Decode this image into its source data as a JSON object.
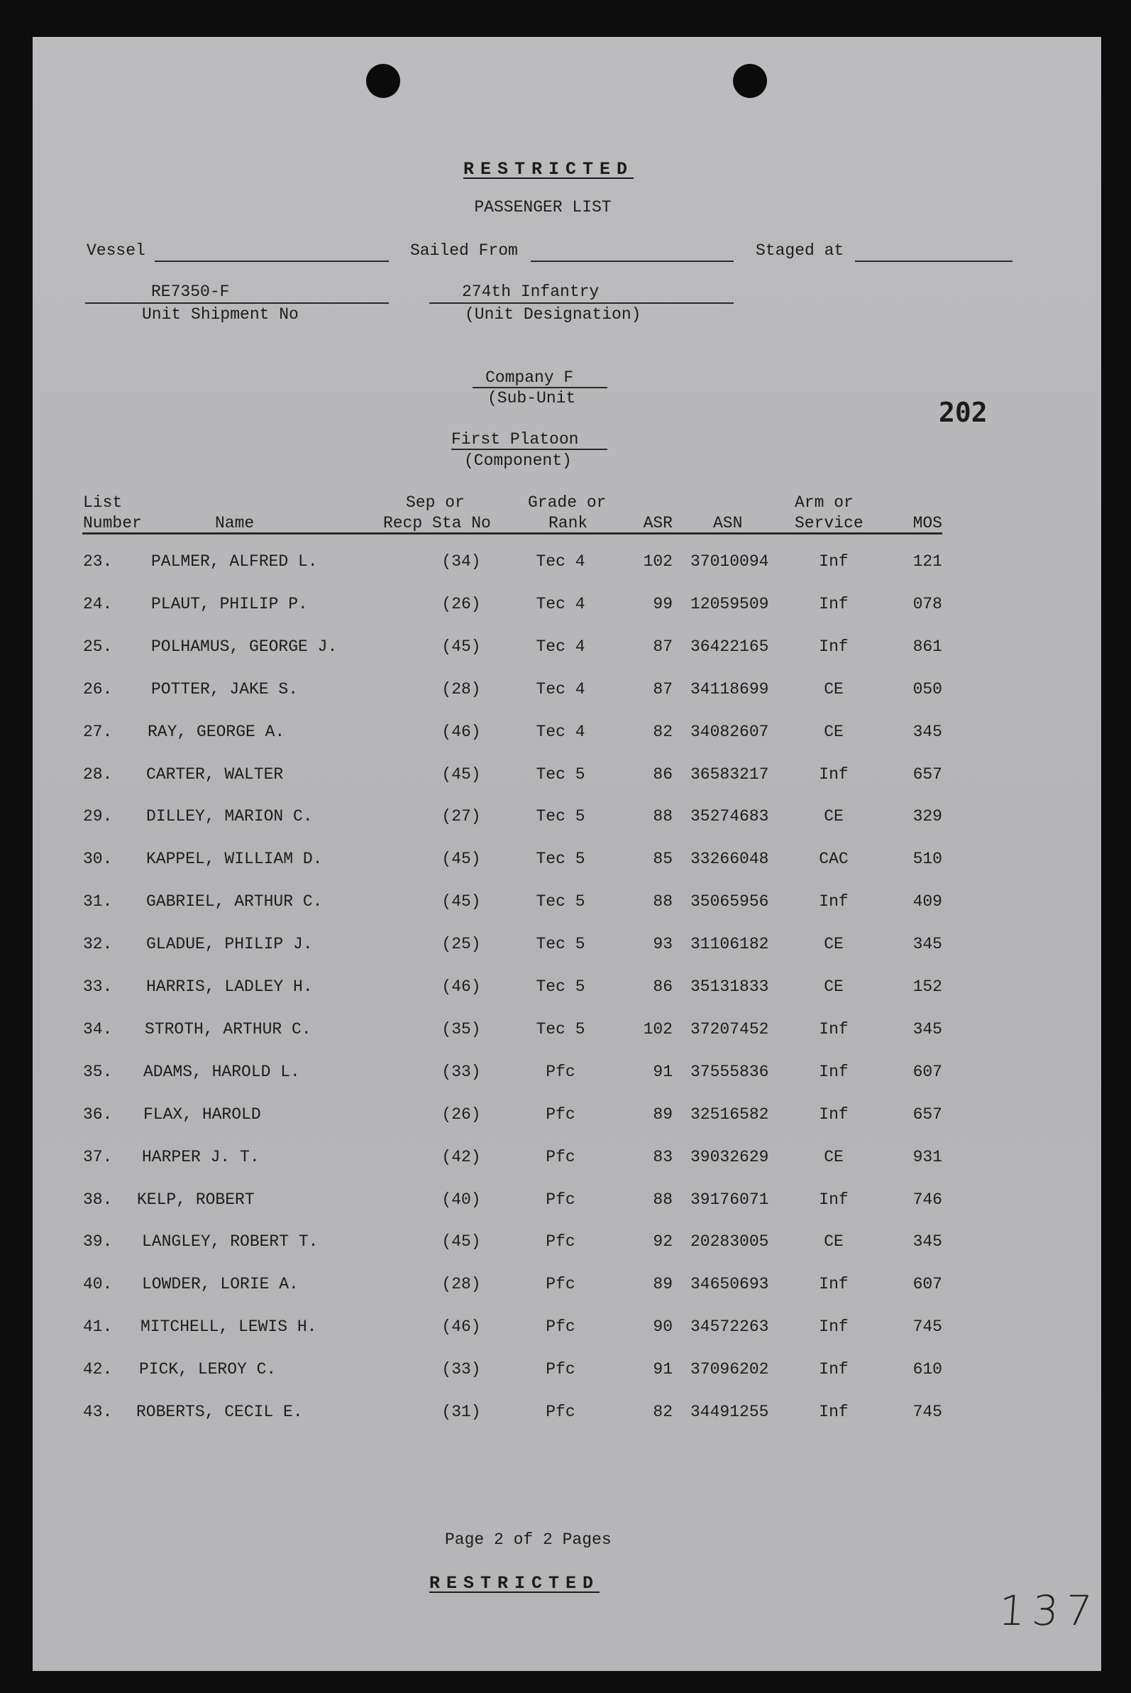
{
  "header": {
    "classification": "RESTRICTED",
    "title": "PASSENGER LIST",
    "vessel_label": "Vessel",
    "vessel_value": "",
    "sailed_from_label": "Sailed From",
    "sailed_from_value": "",
    "staged_at_label": "Staged at",
    "staged_at_value": "",
    "unit_shipment_no": "RE7350-F",
    "unit_shipment_label": "Unit Shipment No",
    "unit_designation": "274th Infantry",
    "unit_designation_label": "(Unit Designation)",
    "sub_unit": "Company F",
    "sub_unit_label": "(Sub-Unit",
    "component": "First Platoon",
    "component_label": "(Component)",
    "stamp_number": "202"
  },
  "table": {
    "columns": [
      {
        "line1": "List",
        "line2": "Number"
      },
      {
        "line1": "",
        "line2": "Name"
      },
      {
        "line1": "Sep or",
        "line2": "Recp Sta No"
      },
      {
        "line1": "Grade or",
        "line2": "Rank"
      },
      {
        "line1": "",
        "line2": "ASR"
      },
      {
        "line1": "",
        "line2": "ASN"
      },
      {
        "line1": "Arm or",
        "line2": "Service"
      },
      {
        "line1": "",
        "line2": "MOS"
      }
    ],
    "rows": [
      {
        "no": "23.",
        "name": "PALMER, ALFRED L.",
        "sep": "(34)",
        "grade": "Tec 4",
        "asr": "102",
        "asn": "37010094",
        "arm": "Inf",
        "mos": "121"
      },
      {
        "no": "24.",
        "name": "PLAUT, PHILIP P.",
        "sep": "(26)",
        "grade": "Tec 4",
        "asr": "99",
        "asn": "12059509",
        "arm": "Inf",
        "mos": "078"
      },
      {
        "no": "25.",
        "name": "POLHAMUS, GEORGE J.",
        "sep": "(45)",
        "grade": "Tec 4",
        "asr": "87",
        "asn": "36422165",
        "arm": "Inf",
        "mos": "861"
      },
      {
        "no": "26.",
        "name": "POTTER, JAKE S.",
        "sep": "(28)",
        "grade": "Tec 4",
        "asr": "87",
        "asn": "34118699",
        "arm": "CE",
        "mos": "050"
      },
      {
        "no": "27.",
        "name": "RAY, GEORGE A.",
        "sep": "(46)",
        "grade": "Tec 4",
        "asr": "82",
        "asn": "34082607",
        "arm": "CE",
        "mos": "345"
      },
      {
        "no": "28.",
        "name": "CARTER, WALTER",
        "sep": "(45)",
        "grade": "Tec 5",
        "asr": "86",
        "asn": "36583217",
        "arm": "Inf",
        "mos": "657"
      },
      {
        "no": "29.",
        "name": "DILLEY, MARION C.",
        "sep": "(27)",
        "grade": "Tec 5",
        "asr": "88",
        "asn": "35274683",
        "arm": "CE",
        "mos": "329"
      },
      {
        "no": "30.",
        "name": "KAPPEL, WILLIAM D.",
        "sep": "(45)",
        "grade": "Tec 5",
        "asr": "85",
        "asn": "33266048",
        "arm": "CAC",
        "mos": "510"
      },
      {
        "no": "31.",
        "name": "GABRIEL, ARTHUR C.",
        "sep": "(45)",
        "grade": "Tec 5",
        "asr": "88",
        "asn": "35065956",
        "arm": "Inf",
        "mos": "409"
      },
      {
        "no": "32.",
        "name": "GLADUE, PHILIP J.",
        "sep": "(25)",
        "grade": "Tec 5",
        "asr": "93",
        "asn": "31106182",
        "arm": "CE",
        "mos": "345"
      },
      {
        "no": "33.",
        "name": "HARRIS, LADLEY H.",
        "sep": "(46)",
        "grade": "Tec 5",
        "asr": "86",
        "asn": "35131833",
        "arm": "CE",
        "mos": "152"
      },
      {
        "no": "34.",
        "name": "STROTH, ARTHUR C.",
        "sep": "(35)",
        "grade": "Tec 5",
        "asr": "102",
        "asn": "37207452",
        "arm": "Inf",
        "mos": "345"
      },
      {
        "no": "35.",
        "name": "ADAMS, HAROLD L.",
        "sep": "(33)",
        "grade": "Pfc",
        "asr": "91",
        "asn": "37555836",
        "arm": "Inf",
        "mos": "607"
      },
      {
        "no": "36.",
        "name": "FLAX, HAROLD",
        "sep": "(26)",
        "grade": "Pfc",
        "asr": "89",
        "asn": "32516582",
        "arm": "Inf",
        "mos": "657"
      },
      {
        "no": "37.",
        "name": "HARPER J. T.",
        "sep": "(42)",
        "grade": "Pfc",
        "asr": "83",
        "asn": "39032629",
        "arm": "CE",
        "mos": "931"
      },
      {
        "no": "38.",
        "name": "KELP, ROBERT",
        "sep": "(40)",
        "grade": "Pfc",
        "asr": "88",
        "asn": "39176071",
        "arm": "Inf",
        "mos": "746"
      },
      {
        "no": "39.",
        "name": "LANGLEY, ROBERT T.",
        "sep": "(45)",
        "grade": "Pfc",
        "asr": "92",
        "asn": "20283005",
        "arm": "CE",
        "mos": "345"
      },
      {
        "no": "40.",
        "name": "LOWDER, LORIE A.",
        "sep": "(28)",
        "grade": "Pfc",
        "asr": "89",
        "asn": "34650693",
        "arm": "Inf",
        "mos": "607"
      },
      {
        "no": "41.",
        "name": "MITCHELL, LEWIS H.",
        "sep": "(46)",
        "grade": "Pfc",
        "asr": "90",
        "asn": "34572263",
        "arm": "Inf",
        "mos": "745"
      },
      {
        "no": "42.",
        "name": "PICK, LEROY C.",
        "sep": "(33)",
        "grade": "Pfc",
        "asr": "91",
        "asn": "37096202",
        "arm": "Inf",
        "mos": "610"
      },
      {
        "no": "43.",
        "name": "ROBERTS, CECIL E.",
        "sep": "(31)",
        "grade": "Pfc",
        "asr": "82",
        "asn": "34491255",
        "arm": "Inf",
        "mos": "745"
      }
    ]
  },
  "footer": {
    "page_info": "Page 2 of 2 Pages",
    "classification": "RESTRICTED",
    "handwritten_number": "137"
  }
}
